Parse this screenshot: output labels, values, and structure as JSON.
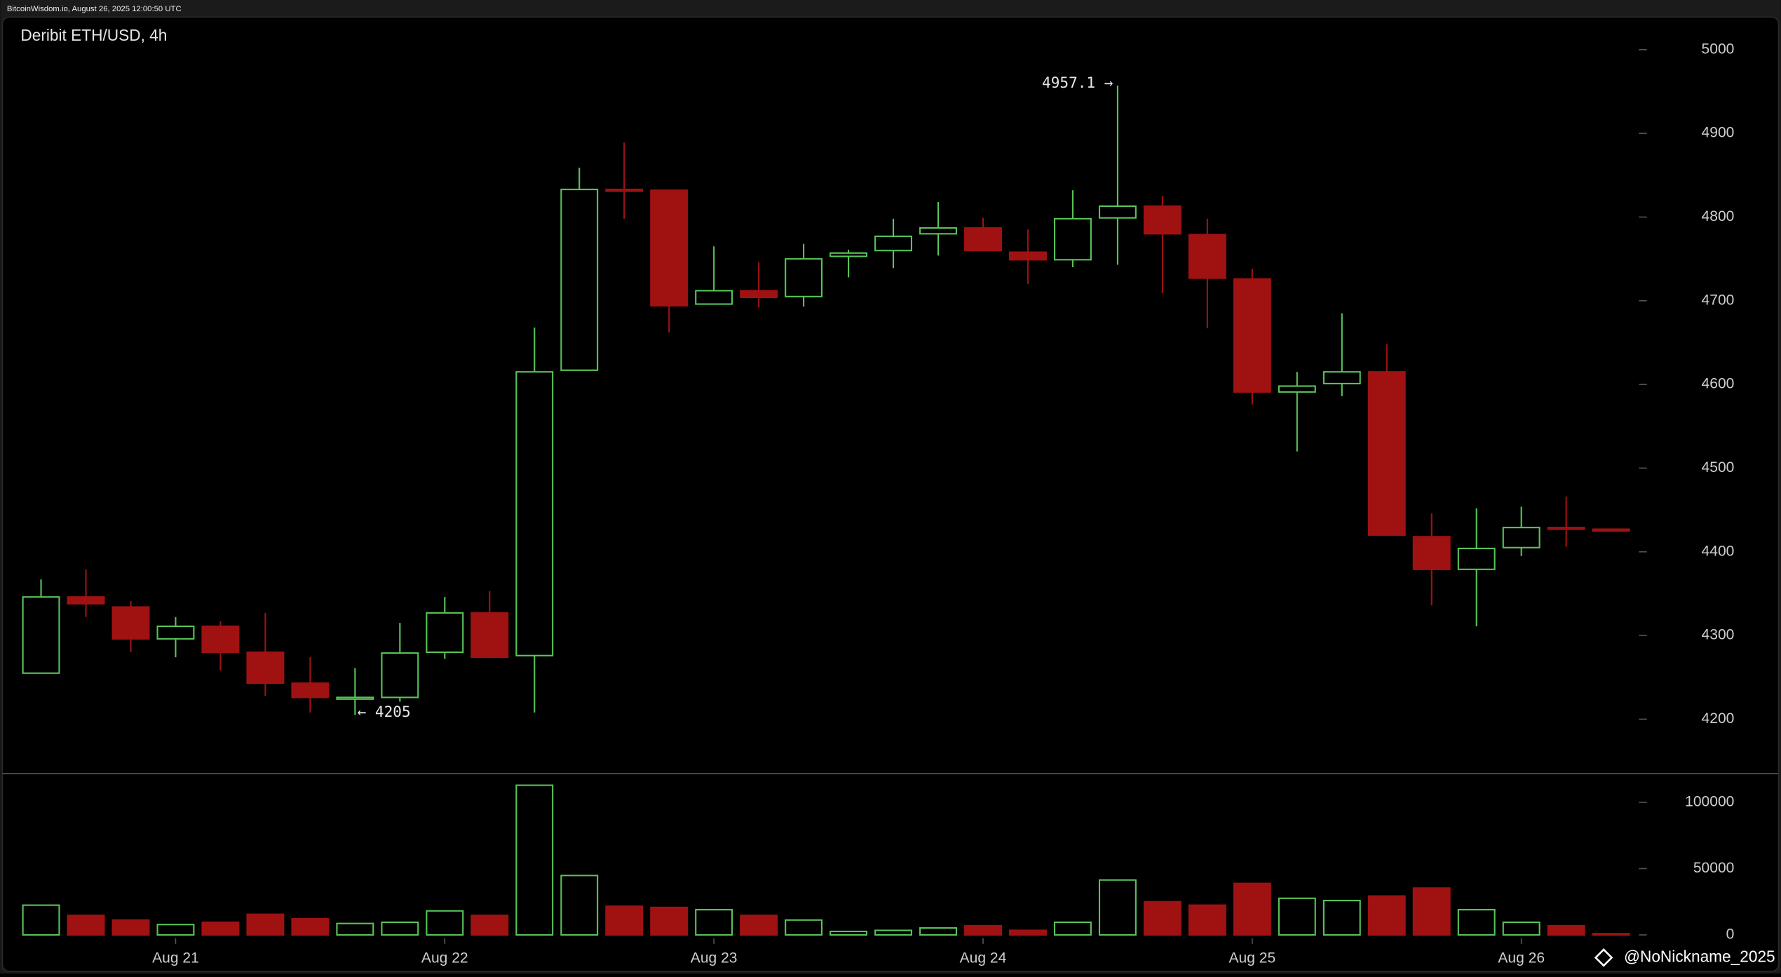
{
  "header": "BitcoinWisdom.io, August 26, 2025 12:00:50 UTC",
  "watermark": "@NoNickname_2025",
  "chart_data": [
    {
      "type": "candlestick",
      "title": "Deribit ETH/USD, 4h",
      "categories": [
        null,
        null,
        null,
        "Aug 21",
        null,
        null,
        null,
        null,
        null,
        "Aug 22",
        null,
        null,
        null,
        null,
        null,
        "Aug 23",
        null,
        null,
        null,
        null,
        null,
        "Aug 24",
        null,
        null,
        null,
        null,
        null,
        "Aug 25",
        null,
        null,
        null,
        null,
        null,
        "Aug 26",
        null,
        null
      ],
      "open": [
        4255,
        4346,
        4334,
        4296,
        4311,
        4280,
        4243,
        4224,
        4226,
        4280,
        4327,
        4276,
        4617,
        4833,
        4832,
        4696,
        4712,
        4705,
        4753,
        4760,
        4780,
        4787,
        4758,
        4749,
        4799,
        4813,
        4779,
        4726,
        4591,
        4601,
        4615,
        4418,
        4379,
        4405,
        4429,
        4427
      ],
      "high": [
        4367,
        4379,
        4341,
        4322,
        4317,
        4327,
        4274,
        4261,
        4315,
        4346,
        4353,
        4668,
        4859,
        4889,
        4832,
        4765,
        4746,
        4768,
        4761,
        4798,
        4818,
        4799,
        4785,
        4832,
        4957.1,
        4825,
        4798,
        4738,
        4615,
        4685,
        4648,
        4446,
        4452,
        4454,
        4466,
        4427
      ],
      "low": [
        4255,
        4322,
        4280,
        4274,
        4258,
        4228,
        4208,
        4205,
        4221,
        4272,
        4273,
        4208,
        4617,
        4798,
        4662,
        4696,
        4692,
        4693,
        4728,
        4739,
        4754,
        4760,
        4720,
        4740,
        4743,
        4709,
        4667,
        4576,
        4520,
        4586,
        4420,
        4336,
        4311,
        4395,
        4406,
        4425
      ],
      "close": [
        4346,
        4338,
        4296,
        4311,
        4280,
        4243,
        4226,
        4226,
        4279,
        4327,
        4274,
        4615,
        4833,
        4832,
        4694,
        4712,
        4704,
        4750,
        4757,
        4777,
        4787,
        4760,
        4749,
        4798,
        4813,
        4780,
        4727,
        4591,
        4598,
        4615,
        4420,
        4379,
        4404,
        4429,
        4428,
        4425
      ],
      "up_color": "#58c458",
      "down_color": "#a01212",
      "ylim": [
        4135,
        5039
      ],
      "yticks": [
        4200,
        4300,
        4400,
        4500,
        4600,
        4700,
        4800,
        4900,
        5000
      ],
      "annotations": [
        "4957.1 →",
        "← 4205"
      ]
    },
    {
      "type": "bar",
      "values": [
        22400,
        14700,
        11200,
        7800,
        9500,
        15500,
        12100,
        8600,
        9500,
        18100,
        14700,
        112900,
        44800,
        21600,
        20700,
        19000,
        14700,
        11200,
        2600,
        3400,
        5200,
        6900,
        3400,
        9500,
        41400,
        25000,
        22400,
        38800,
        27600,
        25900,
        29300,
        35300,
        19000,
        9500,
        6900,
        900
      ],
      "ylim": [
        0,
        120000
      ],
      "yticks": [
        0,
        50000,
        100000
      ]
    }
  ]
}
